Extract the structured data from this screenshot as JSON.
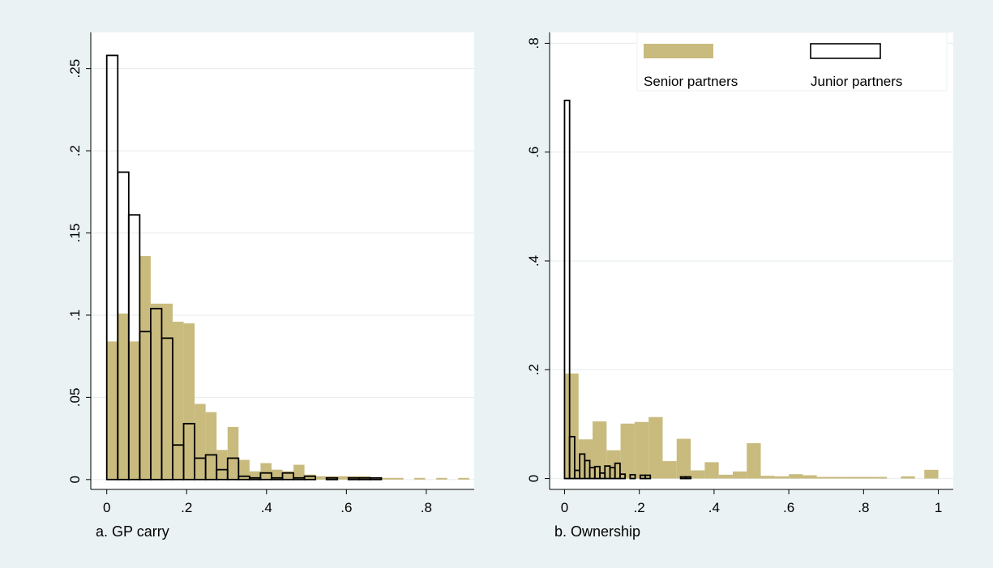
{
  "colors": {
    "background": "#eaf2f3",
    "plot_bg": "#ffffff",
    "senior": "#c9bb7e",
    "junior_fill": "#ffffff",
    "junior_edge": "#000000",
    "grid": "#e6ebec"
  },
  "legend": {
    "senior_label": "Senior partners",
    "junior_label": "Junior partners"
  },
  "chart_data": [
    {
      "type": "bar",
      "subtype": "histogram",
      "xlabel": "a. GP carry",
      "ylabel": "",
      "xlim": [
        -0.04,
        0.92
      ],
      "ylim": [
        -0.006,
        0.272
      ],
      "xticks": [
        0,
        0.2,
        0.4,
        0.6,
        0.8
      ],
      "xtick_labels": [
        "0",
        ".2",
        ".4",
        ".6",
        ".8"
      ],
      "yticks": [
        0,
        0.05,
        0.1,
        0.15,
        0.2,
        0.25
      ],
      "ytick_labels": [
        "0",
        ".05",
        ".1",
        ".15",
        ".2",
        ".25"
      ],
      "grid": true,
      "series": [
        {
          "name": "Senior partners",
          "bin_width": 0.0275,
          "bins": [
            [
              0.0,
              0.084
            ],
            [
              0.0275,
              0.101
            ],
            [
              0.055,
              0.084
            ],
            [
              0.0825,
              0.136
            ],
            [
              0.11,
              0.107
            ],
            [
              0.1375,
              0.107
            ],
            [
              0.165,
              0.096
            ],
            [
              0.1925,
              0.095
            ],
            [
              0.22,
              0.046
            ],
            [
              0.2475,
              0.041
            ],
            [
              0.275,
              0.018
            ],
            [
              0.3025,
              0.032
            ],
            [
              0.33,
              0.012
            ],
            [
              0.3575,
              0.005
            ],
            [
              0.385,
              0.01
            ],
            [
              0.4125,
              0.006
            ],
            [
              0.44,
              0.005
            ],
            [
              0.4675,
              0.009
            ],
            [
              0.495,
              0.003
            ],
            [
              0.5225,
              0.002
            ],
            [
              0.55,
              0.002
            ],
            [
              0.5775,
              0.002
            ],
            [
              0.605,
              0.002
            ],
            [
              0.6325,
              0.002
            ],
            [
              0.66,
              0.001
            ],
            [
              0.6875,
              0.001
            ],
            [
              0.715,
              0.001
            ],
            [
              0.77,
              0.001
            ],
            [
              0.825,
              0.001
            ],
            [
              0.88,
              0.001
            ]
          ]
        },
        {
          "name": "Junior partners",
          "bin_width": 0.0275,
          "bins": [
            [
              0.0,
              0.258
            ],
            [
              0.0275,
              0.187
            ],
            [
              0.055,
              0.161
            ],
            [
              0.0825,
              0.09
            ],
            [
              0.11,
              0.104
            ],
            [
              0.1375,
              0.086
            ],
            [
              0.165,
              0.021
            ],
            [
              0.1925,
              0.034
            ],
            [
              0.22,
              0.013
            ],
            [
              0.2475,
              0.015
            ],
            [
              0.275,
              0.006
            ],
            [
              0.3025,
              0.013
            ],
            [
              0.33,
              0.002
            ],
            [
              0.3575,
              0.001
            ],
            [
              0.385,
              0.004
            ],
            [
              0.4125,
              0.001
            ],
            [
              0.44,
              0.004
            ],
            [
              0.4675,
              0.001
            ],
            [
              0.495,
              0.002
            ],
            [
              0.55,
              0.001
            ],
            [
              0.605,
              0.001
            ],
            [
              0.6325,
              0.001
            ],
            [
              0.66,
              0.001
            ]
          ]
        }
      ]
    },
    {
      "type": "bar",
      "subtype": "histogram",
      "xlabel": "b. Ownership",
      "ylabel": "",
      "xlim": [
        -0.04,
        1.04
      ],
      "ylim": [
        -0.02,
        0.82
      ],
      "xticks": [
        0,
        0.2,
        0.4,
        0.6,
        0.8,
        1
      ],
      "xtick_labels": [
        "0",
        ".2",
        ".4",
        ".6",
        ".8",
        "1"
      ],
      "yticks": [
        0,
        0.2,
        0.4,
        0.6,
        0.8
      ],
      "ytick_labels": [
        "0",
        ".2",
        ".4",
        ".6",
        ".8"
      ],
      "grid": true,
      "series": [
        {
          "name": "Senior partners",
          "bin_width": 0.0375,
          "bins": [
            [
              0.0,
              0.193
            ],
            [
              0.0375,
              0.072
            ],
            [
              0.075,
              0.105
            ],
            [
              0.1125,
              0.052
            ],
            [
              0.15,
              0.101
            ],
            [
              0.1875,
              0.104
            ],
            [
              0.225,
              0.113
            ],
            [
              0.2625,
              0.032
            ],
            [
              0.3,
              0.073
            ],
            [
              0.3375,
              0.015
            ],
            [
              0.375,
              0.03
            ],
            [
              0.4125,
              0.007
            ],
            [
              0.45,
              0.013
            ],
            [
              0.4875,
              0.065
            ],
            [
              0.525,
              0.005
            ],
            [
              0.5625,
              0.004
            ],
            [
              0.6,
              0.008
            ],
            [
              0.6375,
              0.006
            ],
            [
              0.675,
              0.003
            ],
            [
              0.7125,
              0.003
            ],
            [
              0.75,
              0.003
            ],
            [
              0.7875,
              0.003
            ],
            [
              0.825,
              0.003
            ],
            [
              0.9,
              0.004
            ],
            [
              0.9625,
              0.016
            ]
          ]
        },
        {
          "name": "Junior partners",
          "bin_width": 0.0135,
          "bins": [
            [
              0.0,
              0.695
            ],
            [
              0.0135,
              0.077
            ],
            [
              0.027,
              0.015
            ],
            [
              0.0405,
              0.045
            ],
            [
              0.054,
              0.033
            ],
            [
              0.0675,
              0.02
            ],
            [
              0.081,
              0.022
            ],
            [
              0.0945,
              0.01
            ],
            [
              0.108,
              0.023
            ],
            [
              0.1215,
              0.02
            ],
            [
              0.135,
              0.028
            ],
            [
              0.1485,
              0.008
            ],
            [
              0.1755,
              0.007
            ],
            [
              0.2025,
              0.006
            ],
            [
              0.216,
              0.006
            ],
            [
              0.3105,
              0.003
            ],
            [
              0.324,
              0.003
            ]
          ]
        }
      ]
    }
  ]
}
